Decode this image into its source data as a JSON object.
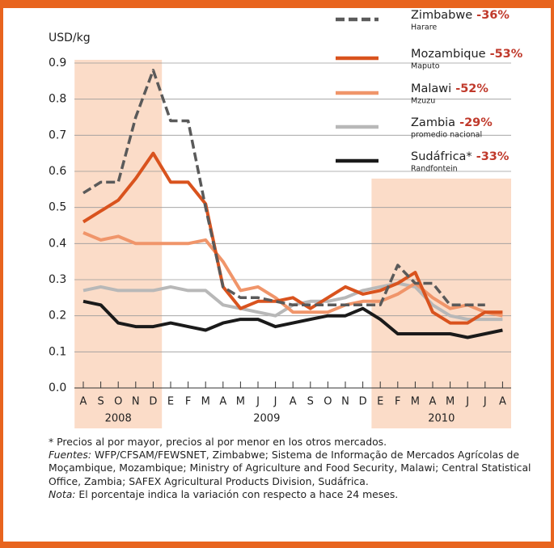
{
  "chart_data": {
    "type": "line",
    "y_label": "USD/kg",
    "categories": [
      "A",
      "S",
      "O",
      "N",
      "D",
      "E",
      "F",
      "M",
      "A",
      "M",
      "J",
      "J",
      "A",
      "S",
      "O",
      "N",
      "D",
      "E",
      "F",
      "M",
      "A",
      "M",
      "J",
      "J",
      "A"
    ],
    "x_groups": [
      {
        "label": "2008",
        "start": 0,
        "end": 4,
        "shaded": true
      },
      {
        "label": "2009",
        "start": 5,
        "end": 16,
        "shaded": false
      },
      {
        "label": "2010",
        "start": 17,
        "end": 24,
        "shaded": true
      }
    ],
    "ylim": [
      0,
      0.9
    ],
    "yticks": [
      {
        "value": 0,
        "label": "0.0"
      },
      0.1,
      0.2,
      0.3,
      0.4,
      0.5,
      0.6,
      0.7,
      0.8,
      0.9
    ],
    "grid": true,
    "series": [
      {
        "name": "Zimbabwe",
        "change": "-36%",
        "market": "Harare",
        "color": "#5a5a5a",
        "dashed": true,
        "values": [
          0.54,
          0.57,
          0.57,
          0.75,
          0.88,
          0.74,
          0.74,
          0.5,
          0.28,
          0.25,
          0.25,
          0.24,
          0.23,
          0.23,
          0.23,
          0.23,
          0.23,
          0.23,
          0.34,
          0.29,
          0.29,
          0.23,
          0.23,
          0.23,
          null
        ]
      },
      {
        "name": "Mozambique",
        "change": "-53%",
        "market": "Maputo",
        "color": "#d9531e",
        "dashed": false,
        "values": [
          0.46,
          0.49,
          0.52,
          0.58,
          0.65,
          0.57,
          0.57,
          0.51,
          0.28,
          0.22,
          0.24,
          0.24,
          0.25,
          0.22,
          0.25,
          0.28,
          0.26,
          0.27,
          0.29,
          0.32,
          0.21,
          0.18,
          0.18,
          0.21,
          0.21
        ]
      },
      {
        "name": "Malawi",
        "change": "-52%",
        "market": "Mzuzu",
        "color": "#f0956a",
        "dashed": false,
        "values": [
          0.43,
          0.41,
          0.42,
          0.4,
          0.4,
          0.4,
          0.4,
          0.41,
          0.35,
          0.27,
          0.28,
          0.25,
          0.21,
          0.21,
          0.21,
          0.23,
          0.24,
          0.24,
          0.26,
          0.29,
          0.25,
          0.22,
          0.23,
          0.21,
          0.2
        ]
      },
      {
        "name": "Zambia",
        "change": "-29%",
        "market": "promedio nacional",
        "color": "#b8b8b8",
        "dashed": false,
        "values": [
          0.27,
          0.28,
          0.27,
          0.27,
          0.27,
          0.28,
          0.27,
          0.27,
          0.23,
          0.22,
          0.21,
          0.2,
          0.23,
          0.24,
          0.24,
          0.25,
          0.27,
          0.28,
          0.29,
          0.28,
          0.23,
          0.2,
          0.19,
          0.19,
          0.19
        ]
      },
      {
        "name": "Sudáfrica*",
        "change": "-33%",
        "market": "Randfontein",
        "color": "#1a1a1a",
        "dashed": false,
        "values": [
          0.24,
          0.23,
          0.18,
          0.17,
          0.17,
          0.18,
          0.17,
          0.16,
          0.18,
          0.19,
          0.19,
          0.17,
          0.18,
          0.19,
          0.2,
          0.2,
          0.22,
          0.19,
          0.15,
          0.15,
          0.15,
          0.15,
          0.14,
          0.15,
          0.16
        ]
      }
    ],
    "notes": [
      {
        "text": "* Precios al por mayor,  precios al por menor en los otros mercados."
      },
      {
        "label": "Fuentes:",
        "text": " WFP/CFSAM/FEWSNET, Zimbabwe; Sistema de Informação de Mercados Agrícolas de Moçambique, Mozambique; Ministry of Agriculture and Food Security, Malawi; Central Statistical Office, Zambia; SAFEX Agricultural Products Division, Sudáfrica."
      },
      {
        "label": "Nota:",
        "text": " El porcentaje indica la variación con respecto a hace 24 meses."
      }
    ]
  }
}
